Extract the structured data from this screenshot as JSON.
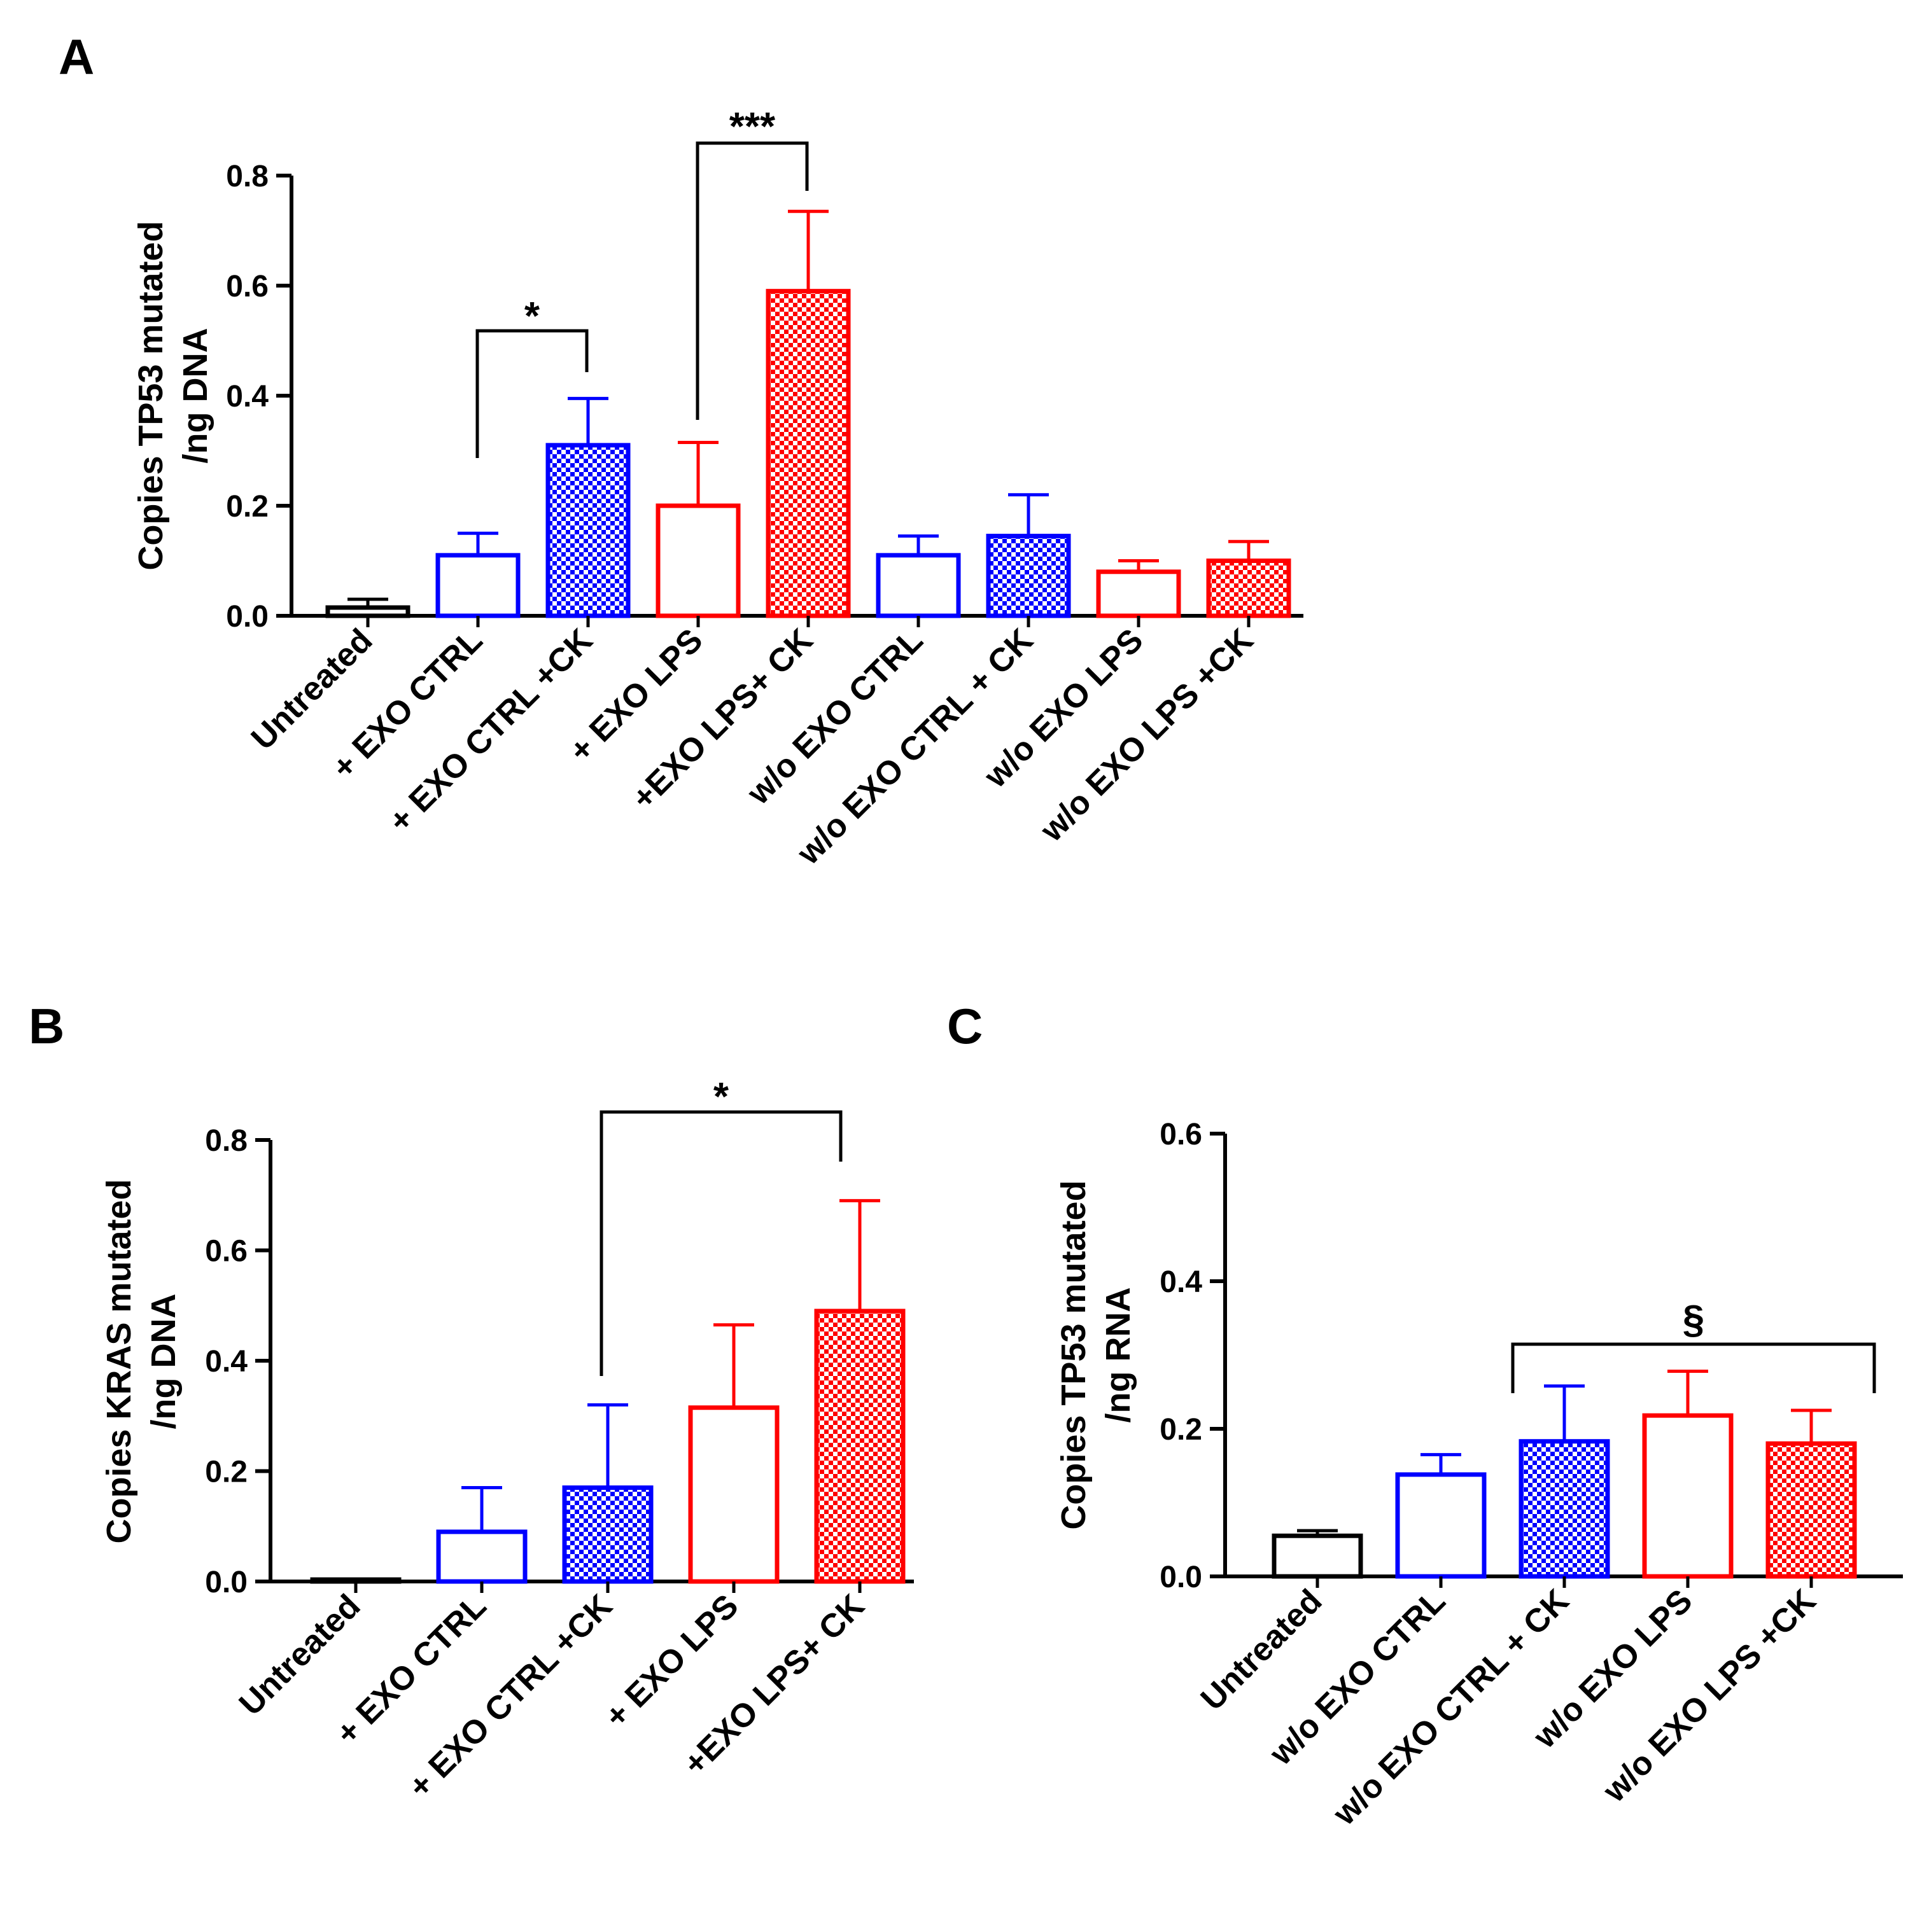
{
  "chart_data": [
    {
      "panel_label": "A",
      "type": "bar",
      "ylabel": [
        "Copies TP53 mutated",
        "/ng DNA"
      ],
      "ylim": [
        0,
        0.8
      ],
      "yticks": [
        "0.0",
        "0.2",
        "0.4",
        "0.6",
        "0.8"
      ],
      "categories": [
        "Untreated",
        "+ EXO CTRL",
        "+ EXO CTRL +CK",
        "+ EXO LPS",
        "+EXO LPS+ CK",
        "w/o EXO CTRL",
        "w/o EXO CTRL + CK",
        "w/o EXO LPS",
        "w/o EXO LPS +CK"
      ],
      "values": [
        0.015,
        0.11,
        0.31,
        0.2,
        0.59,
        0.11,
        0.145,
        0.08,
        0.1
      ],
      "errors": [
        0.015,
        0.04,
        0.085,
        0.115,
        0.145,
        0.035,
        0.075,
        0.02,
        0.035
      ],
      "colors": [
        "#000000",
        "#0000ff",
        "#0000ff",
        "#ff0000",
        "#ff0000",
        "#0000ff",
        "#0000ff",
        "#ff0000",
        "#ff0000"
      ],
      "patterns": [
        "open",
        "open",
        "checker",
        "open",
        "checker",
        "open",
        "checker",
        "open",
        "checker"
      ],
      "significance": [
        {
          "from": 1,
          "to": 2,
          "label": "*"
        },
        {
          "from": 3,
          "to": 4,
          "label": "***"
        }
      ]
    },
    {
      "panel_label": "B",
      "type": "bar",
      "ylabel": [
        "Copies KRAS mutated",
        "/ng DNA"
      ],
      "ylim": [
        0,
        0.8
      ],
      "yticks": [
        "0.0",
        "0.2",
        "0.4",
        "0.6",
        "0.8"
      ],
      "categories": [
        "Untreated",
        "+ EXO CTRL",
        "+ EXO CTRL +CK",
        "+ EXO LPS",
        "+EXO LPS+ CK"
      ],
      "values": [
        0.003,
        0.09,
        0.17,
        0.315,
        0.49
      ],
      "errors": [
        0.0,
        0.08,
        0.15,
        0.15,
        0.2
      ],
      "colors": [
        "#000000",
        "#0000ff",
        "#0000ff",
        "#ff0000",
        "#ff0000"
      ],
      "patterns": [
        "open",
        "open",
        "checker",
        "open",
        "checker"
      ],
      "significance": [
        {
          "from": 2,
          "to": 4,
          "label": "*"
        }
      ]
    },
    {
      "panel_label": "C",
      "type": "bar",
      "ylabel": [
        "Copies TP53 mutated",
        "/ng RNA"
      ],
      "ylim": [
        0,
        0.6
      ],
      "yticks": [
        "0.0",
        "0.2",
        "0.4",
        "0.6"
      ],
      "categories": [
        "Untreated",
        "w/o EXO CTRL",
        "w/o EXO CTRL + CK",
        "w/o EXO LPS",
        "w/o EXO LPS +CK"
      ],
      "values": [
        0.055,
        0.138,
        0.183,
        0.218,
        0.18
      ],
      "errors": [
        0.007,
        0.027,
        0.075,
        0.06,
        0.045
      ],
      "colors": [
        "#000000",
        "#0000ff",
        "#0000ff",
        "#ff0000",
        "#ff0000"
      ],
      "patterns": [
        "open",
        "open",
        "checker",
        "open",
        "checker"
      ],
      "significance": [
        {
          "from": 2,
          "to": 4,
          "label": "§"
        }
      ]
    }
  ]
}
